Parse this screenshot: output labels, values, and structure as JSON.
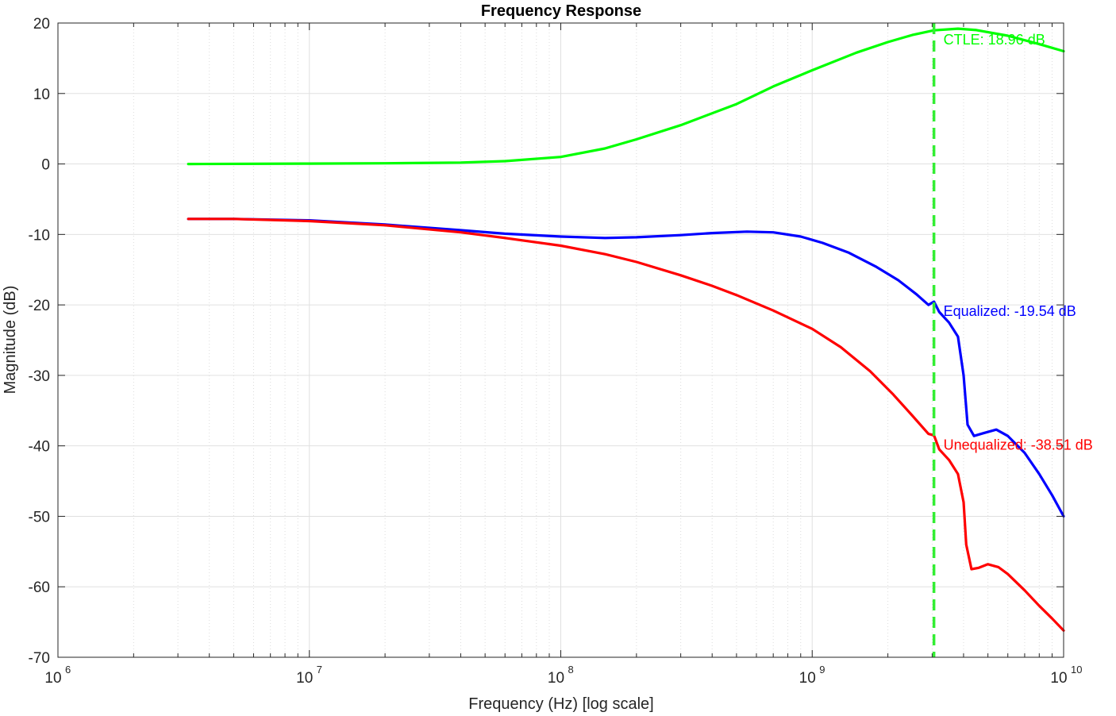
{
  "chart_data": {
    "type": "line",
    "title": "Frequency Response",
    "xlabel": "Frequency (Hz) [log scale]",
    "ylabel": "Magnitude (dB)",
    "x_scale": "log",
    "xlim": [
      1000000,
      10000000000
    ],
    "ylim": [
      -70,
      20
    ],
    "grid": true,
    "minor_grid": true,
    "x_ticks": [
      {
        "base": "10",
        "exp": "6",
        "value": 1000000
      },
      {
        "base": "10",
        "exp": "7",
        "value": 10000000
      },
      {
        "base": "10",
        "exp": "8",
        "value": 100000000
      },
      {
        "base": "10",
        "exp": "9",
        "value": 1000000000
      },
      {
        "base": "10",
        "exp": "10",
        "value": 10000000000
      }
    ],
    "y_ticks": [
      "20",
      "10",
      "0",
      "-10",
      "-20",
      "-30",
      "-40",
      "-50",
      "-60",
      "-70"
    ],
    "y_tick_values": [
      20,
      10,
      0,
      -10,
      -20,
      -30,
      -40,
      -50,
      -60,
      -70
    ],
    "series": [
      {
        "key": "ctle",
        "color": "#00ff00",
        "points": [
          [
            3300000.0,
            0.0
          ],
          [
            10000000.0,
            0.05
          ],
          [
            20000000.0,
            0.1
          ],
          [
            40000000.0,
            0.2
          ],
          [
            60000000.0,
            0.4
          ],
          [
            100000000.0,
            1.0
          ],
          [
            150000000.0,
            2.2
          ],
          [
            200000000.0,
            3.5
          ],
          [
            300000000.0,
            5.5
          ],
          [
            500000000.0,
            8.5
          ],
          [
            700000000.0,
            11.0
          ],
          [
            1000000000.0,
            13.3
          ],
          [
            1500000000.0,
            15.8
          ],
          [
            2000000000.0,
            17.3
          ],
          [
            2500000000.0,
            18.3
          ],
          [
            3050000000.0,
            18.96
          ],
          [
            3800000000.0,
            19.2
          ],
          [
            4500000000.0,
            19.0
          ],
          [
            6000000000.0,
            18.2
          ],
          [
            8000000000.0,
            17.0
          ],
          [
            10000000000.0,
            16.0
          ]
        ]
      },
      {
        "key": "equalized",
        "color": "#0000ff",
        "points": [
          [
            3300000.0,
            -7.8
          ],
          [
            5000000.0,
            -7.8
          ],
          [
            10000000.0,
            -8.0
          ],
          [
            20000000.0,
            -8.6
          ],
          [
            40000000.0,
            -9.4
          ],
          [
            60000000.0,
            -9.9
          ],
          [
            100000000.0,
            -10.3
          ],
          [
            150000000.0,
            -10.5
          ],
          [
            200000000.0,
            -10.4
          ],
          [
            300000000.0,
            -10.1
          ],
          [
            400000000.0,
            -9.8
          ],
          [
            550000000.0,
            -9.6
          ],
          [
            700000000.0,
            -9.7
          ],
          [
            900000000.0,
            -10.3
          ],
          [
            1100000000.0,
            -11.2
          ],
          [
            1400000000.0,
            -12.6
          ],
          [
            1800000000.0,
            -14.6
          ],
          [
            2200000000.0,
            -16.5
          ],
          [
            2600000000.0,
            -18.5
          ],
          [
            2900000000.0,
            -20.0
          ],
          [
            3050000000.0,
            -19.54
          ],
          [
            3200000000.0,
            -21.0
          ],
          [
            3500000000.0,
            -22.5
          ],
          [
            3800000000.0,
            -24.5
          ],
          [
            4000000000.0,
            -30.0
          ],
          [
            4150000000.0,
            -37.0
          ],
          [
            4400000000.0,
            -38.6
          ],
          [
            4800000000.0,
            -38.2
          ],
          [
            5400000000.0,
            -37.7
          ],
          [
            6000000000.0,
            -38.6
          ],
          [
            7000000000.0,
            -41.0
          ],
          [
            8000000000.0,
            -44.0
          ],
          [
            9000000000.0,
            -47.0
          ],
          [
            10000000000.0,
            -50.0
          ]
        ]
      },
      {
        "key": "unequalized",
        "color": "#ff0000",
        "points": [
          [
            3300000.0,
            -7.8
          ],
          [
            5000000.0,
            -7.8
          ],
          [
            10000000.0,
            -8.1
          ],
          [
            20000000.0,
            -8.7
          ],
          [
            40000000.0,
            -9.7
          ],
          [
            60000000.0,
            -10.5
          ],
          [
            100000000.0,
            -11.6
          ],
          [
            150000000.0,
            -12.8
          ],
          [
            200000000.0,
            -13.9
          ],
          [
            300000000.0,
            -15.8
          ],
          [
            400000000.0,
            -17.3
          ],
          [
            500000000.0,
            -18.6
          ],
          [
            700000000.0,
            -20.8
          ],
          [
            1000000000.0,
            -23.4
          ],
          [
            1300000000.0,
            -26.0
          ],
          [
            1700000000.0,
            -29.4
          ],
          [
            2100000000.0,
            -32.7
          ],
          [
            2500000000.0,
            -35.7
          ],
          [
            2900000000.0,
            -38.3
          ],
          [
            3050000000.0,
            -38.51
          ],
          [
            3200000000.0,
            -40.5
          ],
          [
            3500000000.0,
            -42.0
          ],
          [
            3800000000.0,
            -44.0
          ],
          [
            4000000000.0,
            -48.0
          ],
          [
            4100000000.0,
            -54.0
          ],
          [
            4300000000.0,
            -57.5
          ],
          [
            4600000000.0,
            -57.3
          ],
          [
            5000000000.0,
            -56.8
          ],
          [
            5500000000.0,
            -57.2
          ],
          [
            6000000000.0,
            -58.2
          ],
          [
            7000000000.0,
            -60.5
          ],
          [
            8000000000.0,
            -62.7
          ],
          [
            9000000000.0,
            -64.5
          ],
          [
            10000000000.0,
            -66.2
          ]
        ]
      }
    ],
    "marker": {
      "x": 3050000000,
      "color": "#33ee33",
      "style": "dashed"
    },
    "annotations": [
      {
        "key": "ctle_label",
        "text": "CTLE: 18.96 dB",
        "x": 3050000000.0,
        "y": 18.96,
        "color": "#00ff00"
      },
      {
        "key": "eq_label",
        "text": "Equalized: -19.54 dB",
        "x": 3050000000.0,
        "y": -19.54,
        "color": "#0000ff"
      },
      {
        "key": "uneq_label",
        "text": "Unequalized: -38.51 dB",
        "x": 3050000000.0,
        "y": -38.51,
        "color": "#ff0000"
      }
    ]
  }
}
